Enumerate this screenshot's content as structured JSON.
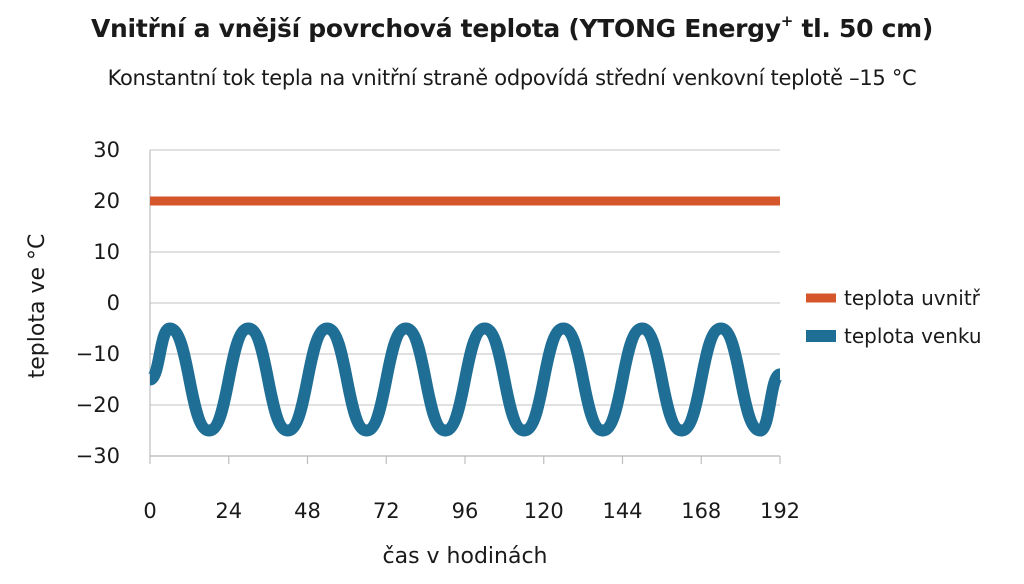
{
  "chart_data": {
    "type": "line",
    "title_main": "Vnitřní a vnější povrchová teplota (YTONG Energy",
    "title_sup": "+",
    "title_end": " tl. 50 cm)",
    "subtitle": "Konstantní tok tepla na vnitřní straně odpovídá střední venkovní teplotě –15 °C",
    "xlabel": "čas v hodinách",
    "ylabel": "teplota ve °C",
    "xlim": [
      0,
      192
    ],
    "ylim": [
      -30,
      30
    ],
    "xticks": [
      0,
      24,
      48,
      72,
      96,
      120,
      144,
      168,
      192
    ],
    "yticks": [
      30,
      20,
      10,
      0,
      -10,
      -20,
      -30
    ],
    "ytick_labels": [
      "30",
      "20",
      "10",
      "0",
      "−10",
      "−20",
      "−30"
    ],
    "grid": "horizontal",
    "legend_position": "right",
    "series": [
      {
        "name": "teplota uvnitř",
        "color": "#d4562a",
        "x": [
          0,
          24,
          48,
          72,
          96,
          120,
          144,
          168,
          192
        ],
        "y": [
          20,
          20,
          20,
          20,
          20,
          20,
          20,
          20,
          20
        ]
      },
      {
        "name": "teplota venku",
        "color": "#1f6e96",
        "x": [
          0,
          6,
          18,
          30,
          42,
          54,
          66,
          78,
          90,
          102,
          114,
          126,
          138,
          150,
          162,
          174,
          186,
          192
        ],
        "y": [
          -15,
          -5,
          -25,
          -5,
          -25,
          -5,
          -25,
          -5,
          -25,
          -5,
          -25,
          -5,
          -25,
          -5,
          -25,
          -5,
          -25,
          -14
        ]
      }
    ]
  }
}
